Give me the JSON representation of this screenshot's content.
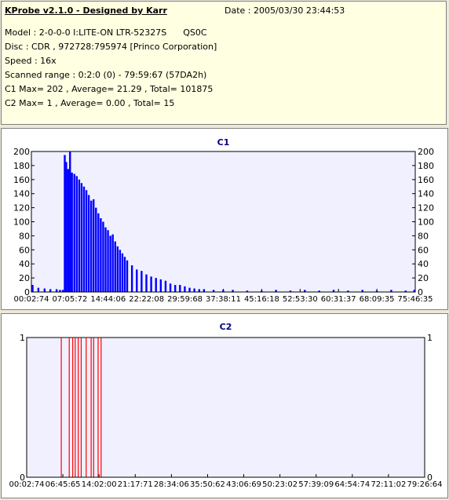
{
  "header": {
    "title": "KProbe v2.1.0 - Designed by Karr",
    "date": "Date : 2005/03/30 23:44:53",
    "model": "Model : 2-0-0-0 I:LITE-ON LTR-52327S      QS0C",
    "disc": "Disc : CDR , 972728:795974 [Princo Corporation]",
    "speed": "Speed : 16x",
    "range": "Scanned range : 0:2:0 (0) - 79:59:67 (57DA2h)",
    "c1_summary": "C1 Max= 202 , Average= 21.29 , Total= 101875",
    "c2_summary": "C2 Max= 1 , Average= 0.00 , Total= 15"
  },
  "colors": {
    "plot_bg": "#f0f0ff",
    "c1_bar": "#0000ff",
    "c2_bar": "#ff0000",
    "title": "#000080"
  },
  "chart_data": [
    {
      "type": "bar",
      "title": "C1",
      "ylim": [
        0,
        200
      ],
      "yticks": [
        0,
        20,
        40,
        60,
        80,
        100,
        120,
        140,
        160,
        180,
        200
      ],
      "xticks": [
        "00:02:74",
        "07:05:72",
        "14:44:06",
        "22:22:08",
        "29:59:68",
        "37:38:11",
        "45:16:18",
        "52:53:30",
        "60:31:37",
        "68:09:35",
        "75:46:35"
      ],
      "x_unit": "minutes",
      "x_range": [
        0.05,
        80
      ],
      "x": [
        0.3,
        1.5,
        2.8,
        4.0,
        5.3,
        6.0,
        6.6,
        7.0,
        7.3,
        7.7,
        8.1,
        8.5,
        9.0,
        9.5,
        10.0,
        10.5,
        11.0,
        11.5,
        12.0,
        12.5,
        13.0,
        13.5,
        14.0,
        14.5,
        15.0,
        15.5,
        16.0,
        16.5,
        17.0,
        17.5,
        18.0,
        18.5,
        19.0,
        19.5,
        20.0,
        21.0,
        22.0,
        23.0,
        24.0,
        25.0,
        26.0,
        27.0,
        28.0,
        29.0,
        30.0,
        31.0,
        32.0,
        33.0,
        34.0,
        35.0,
        36.0,
        38.0,
        40.0,
        42.0,
        45.0,
        48.0,
        51.0,
        54.0,
        57.0,
        60.0,
        63.0,
        66.0,
        69.0,
        72.0,
        75.0,
        78.0,
        79.8
      ],
      "values": [
        10,
        6,
        5,
        4,
        4,
        3,
        3,
        195,
        185,
        175,
        200,
        170,
        168,
        165,
        160,
        155,
        150,
        145,
        138,
        130,
        132,
        120,
        112,
        105,
        100,
        92,
        88,
        80,
        82,
        72,
        65,
        60,
        55,
        50,
        45,
        38,
        32,
        30,
        25,
        22,
        20,
        18,
        16,
        12,
        10,
        10,
        8,
        6,
        5,
        4,
        4,
        3,
        3,
        3,
        2,
        2,
        3,
        2,
        3,
        2,
        3,
        2,
        3,
        2,
        3,
        2,
        3
      ]
    },
    {
      "type": "bar",
      "title": "C2",
      "ylim": [
        0,
        1
      ],
      "yticks": [
        0,
        1
      ],
      "xticks": [
        "00:02:74",
        "06:45:65",
        "14:02:00",
        "21:17:71",
        "28:34:06",
        "35:50:62",
        "43:06:69",
        "50:23:02",
        "57:39:09",
        "64:54:74",
        "72:11:02",
        "79:26:64"
      ],
      "x_unit": "minutes",
      "x_range": [
        0.05,
        80
      ],
      "x": [
        7.0,
        8.6,
        9.3,
        9.8,
        10.4,
        11.0,
        12.0,
        13.0,
        13.5,
        14.4,
        15.0
      ],
      "values": [
        1,
        1,
        1,
        1,
        1,
        1,
        1,
        1,
        1,
        1,
        1
      ]
    }
  ]
}
